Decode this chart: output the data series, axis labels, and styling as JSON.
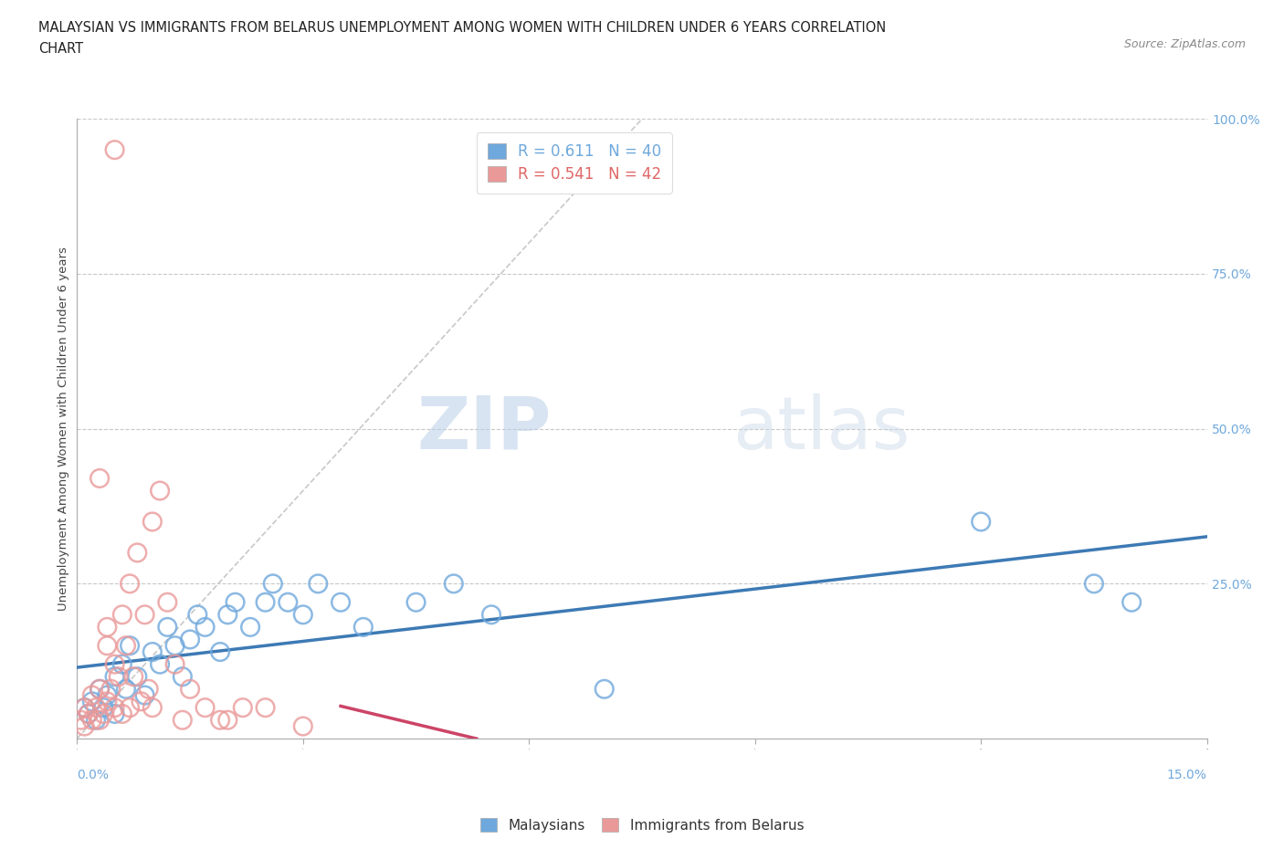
{
  "title_line1": "MALAYSIAN VS IMMIGRANTS FROM BELARUS UNEMPLOYMENT AMONG WOMEN WITH CHILDREN UNDER 6 YEARS CORRELATION",
  "title_line2": "CHART",
  "source": "Source: ZipAtlas.com",
  "ylabel": "Unemployment Among Women with Children Under 6 years",
  "xaxis_label_left": "0.0%",
  "xaxis_label_right": "15.0%",
  "r_malaysian": 0.611,
  "n_malaysian": 40,
  "r_belarus": 0.541,
  "n_belarus": 42,
  "color_malaysian": "#6fa8dc",
  "color_belarus": "#ea9999",
  "color_trendline_malaysian": "#3d7ab5",
  "color_trendline_belarus": "#cc4466",
  "watermark_zip": "ZIP",
  "watermark_atlas": "atlas",
  "xlim": [
    0.0,
    15.0
  ],
  "ylim": [
    0.0,
    100.0
  ],
  "malaysian_x": [
    0.1,
    0.15,
    0.2,
    0.25,
    0.3,
    0.35,
    0.4,
    0.5,
    0.5,
    0.6,
    0.65,
    0.7,
    0.8,
    0.9,
    1.0,
    1.1,
    1.2,
    1.3,
    1.4,
    1.5,
    1.6,
    1.7,
    1.9,
    2.0,
    2.1,
    2.3,
    2.5,
    2.6,
    2.8,
    3.0,
    3.2,
    3.5,
    3.8,
    4.5,
    5.0,
    5.5,
    7.0,
    12.0,
    13.5,
    14.0
  ],
  "malaysian_y": [
    5.0,
    4.0,
    6.0,
    3.0,
    8.0,
    5.0,
    7.0,
    10.0,
    4.0,
    12.0,
    8.0,
    15.0,
    10.0,
    7.0,
    14.0,
    12.0,
    18.0,
    15.0,
    10.0,
    16.0,
    20.0,
    18.0,
    14.0,
    20.0,
    22.0,
    18.0,
    22.0,
    25.0,
    22.0,
    20.0,
    25.0,
    22.0,
    18.0,
    22.0,
    25.0,
    20.0,
    8.0,
    35.0,
    25.0,
    22.0
  ],
  "belarus_x": [
    0.05,
    0.1,
    0.1,
    0.15,
    0.2,
    0.2,
    0.25,
    0.3,
    0.3,
    0.35,
    0.4,
    0.4,
    0.45,
    0.5,
    0.5,
    0.55,
    0.6,
    0.6,
    0.65,
    0.7,
    0.7,
    0.75,
    0.8,
    0.85,
    0.9,
    0.95,
    1.0,
    1.0,
    1.1,
    1.2,
    1.3,
    1.4,
    1.5,
    1.7,
    1.9,
    2.0,
    2.2,
    2.5,
    3.0,
    0.3,
    0.5,
    0.4
  ],
  "belarus_y": [
    3.0,
    5.0,
    2.0,
    4.0,
    3.0,
    7.0,
    5.0,
    3.0,
    8.0,
    4.0,
    6.0,
    15.0,
    8.0,
    12.0,
    5.0,
    10.0,
    20.0,
    4.0,
    15.0,
    25.0,
    5.0,
    10.0,
    30.0,
    6.0,
    20.0,
    8.0,
    35.0,
    5.0,
    40.0,
    22.0,
    12.0,
    3.0,
    8.0,
    5.0,
    3.0,
    3.0,
    5.0,
    5.0,
    2.0,
    42.0,
    95.0,
    18.0
  ],
  "diag_line_x": [
    0.0,
    7.5
  ],
  "diag_line_y": [
    0.0,
    100.0
  ]
}
